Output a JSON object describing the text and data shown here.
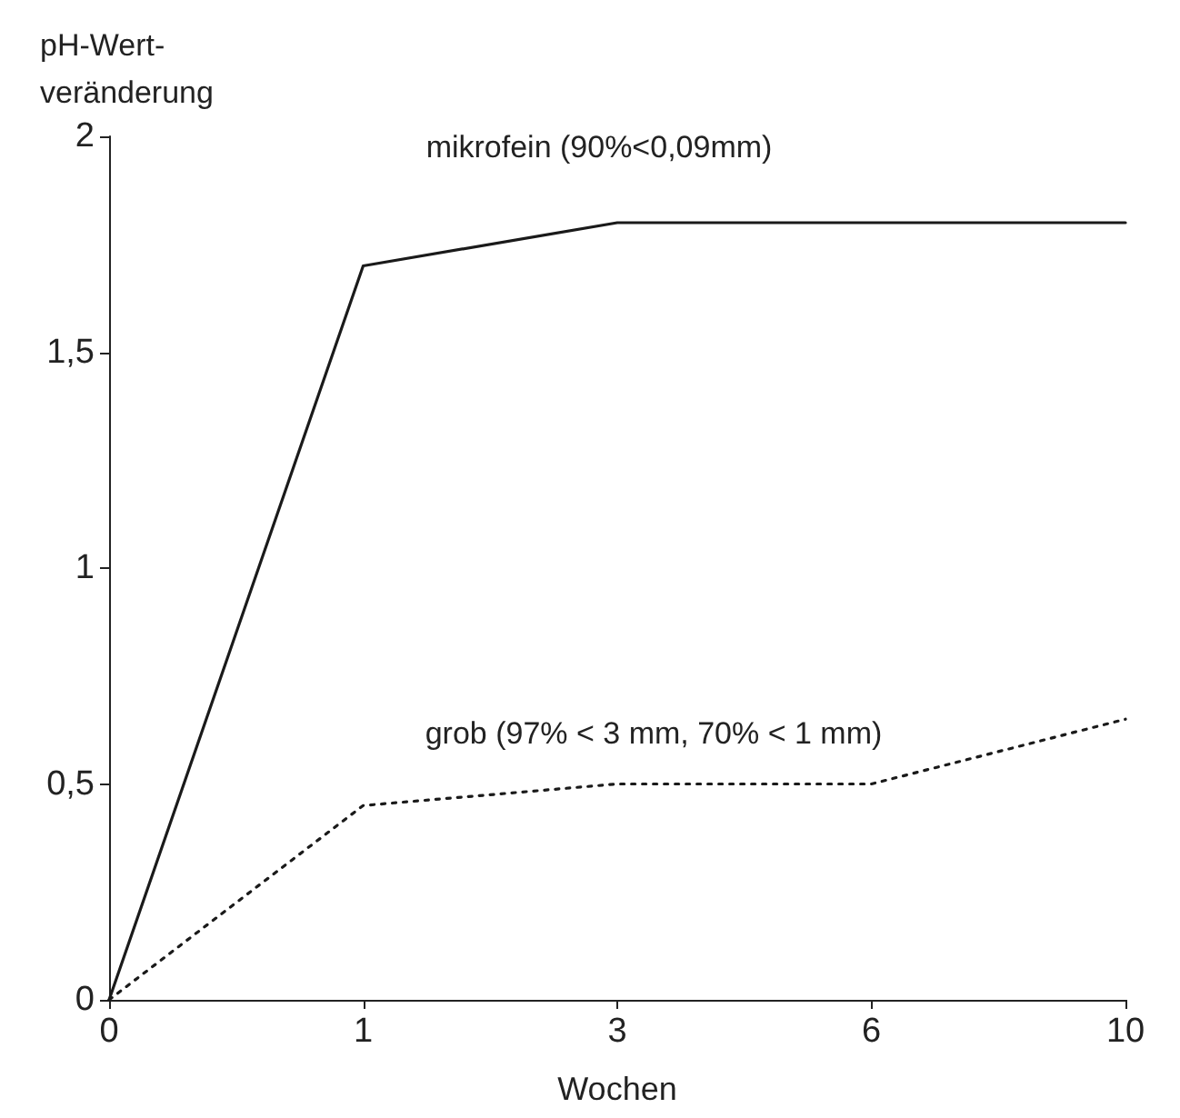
{
  "chart_data": {
    "type": "line",
    "xlabel": "Wochen",
    "ylabel": "pH-Wert-\nveränderung",
    "categories": [
      "0",
      "1",
      "3",
      "6",
      "10"
    ],
    "series": [
      {
        "name": "mikrofein (90%<0,09mm)",
        "color": "#1a1a1a",
        "line_style": "solid",
        "values": [
          0,
          1.7,
          1.8,
          1.8,
          1.8
        ]
      },
      {
        "name": "grob (97% < 3 mm, 70% < 1 mm)",
        "color": "#1a1a1a",
        "line_style": "dotted",
        "values": [
          0,
          0.45,
          0.5,
          0.5,
          0.65
        ]
      }
    ],
    "ylim": [
      0,
      2
    ],
    "yticks": [
      {
        "value": 0,
        "label": "0"
      },
      {
        "value": 0.5,
        "label": "0,5"
      },
      {
        "value": 1,
        "label": "1"
      },
      {
        "value": 1.5,
        "label": "1,5"
      },
      {
        "value": 2,
        "label": "2"
      }
    ],
    "grid": false,
    "legend": false
  }
}
